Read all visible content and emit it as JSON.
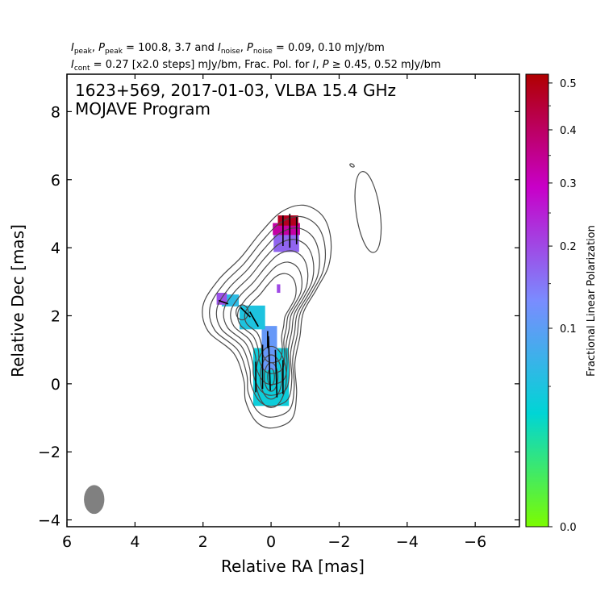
{
  "header": {
    "line1": {
      "i_peak_sym": "I",
      "i_peak_sub": "peak",
      "p_peak_sym": "P",
      "p_peak_sub": "peak",
      "peak_values": " = 100.8, 3.7 and ",
      "i_noise_sym": "I",
      "i_noise_sub": "noise",
      "p_noise_sym": "P",
      "p_noise_sub": "noise",
      "noise_values": " = 0.09, 0.10 mJy/bm"
    },
    "line2": {
      "i_cont_sym": "I",
      "i_cont_sub": "cont",
      "cont_text": " = 0.27 [x2.0 steps] mJy/bm, Frac. Pol. for ",
      "i_sym": "I",
      "p_sym": "P",
      "geq_text": " ≥ 0.45, 0.52 mJy/bm"
    }
  },
  "chart_data": {
    "type": "heatmap",
    "title_line1": "1623+569, 2017-01-03, VLBA 15.4 GHz",
    "title_line2": "MOJAVE Program",
    "xlabel": "Relative RA [mas]",
    "ylabel": "Relative Dec [mas]",
    "xlim": [
      6.0,
      -7.3
    ],
    "ylim": [
      -4.2,
      9.1
    ],
    "x_inverted": true,
    "xticks": [
      6,
      4,
      2,
      0,
      -2,
      -4,
      -6
    ],
    "xtick_labels": [
      "6",
      "4",
      "2",
      "0",
      "−2",
      "−4",
      "−6"
    ],
    "yticks": [
      -4,
      -2,
      0,
      2,
      4,
      6,
      8
    ],
    "ytick_labels": [
      "−4",
      "−2",
      "0",
      "2",
      "4",
      "6",
      "8"
    ],
    "colorbar": {
      "label": "Fractional Linear Polarization",
      "range": [
        0.0,
        0.52
      ],
      "scale": "sqrt",
      "ticks": [
        0.0,
        0.1,
        0.2,
        0.3,
        0.4,
        0.5
      ],
      "tick_labels": [
        "0.0",
        "0.1",
        "0.2",
        "0.3",
        "0.4",
        "0.5"
      ],
      "minor_ticks": [
        0.05,
        0.15,
        0.25,
        0.35,
        0.45
      ],
      "colors": [
        "#7cfc00",
        "#00d5d5",
        "#7a8cff",
        "#c800c8",
        "#b00000"
      ]
    },
    "beam": {
      "ra": 5.2,
      "dec": -3.4,
      "major_mas": 0.85,
      "minor_mas": 0.6,
      "pa_deg": 0,
      "color": "#808080"
    },
    "polarization_regions": [
      {
        "ra": 0.0,
        "dec": 0.2,
        "width": 1.05,
        "height": 1.7,
        "frac_pol": 0.04
      },
      {
        "ra": 0.05,
        "dec": 1.05,
        "width": 0.45,
        "height": 1.3,
        "frac_pol": 0.11
      },
      {
        "ra": 0.55,
        "dec": 1.95,
        "width": 0.75,
        "height": 0.7,
        "frac_pol": 0.05
      },
      {
        "ra": 1.2,
        "dec": 2.45,
        "width": 0.5,
        "height": 0.35,
        "frac_pol": 0.06
      },
      {
        "ra": 1.45,
        "dec": 2.5,
        "width": 0.3,
        "height": 0.35,
        "frac_pol": 0.19
      },
      {
        "ra": -0.45,
        "dec": 4.15,
        "width": 0.75,
        "height": 0.55,
        "frac_pol": 0.17
      },
      {
        "ra": -0.45,
        "dec": 4.55,
        "width": 0.8,
        "height": 0.35,
        "frac_pol": 0.33
      },
      {
        "ra": -0.5,
        "dec": 4.8,
        "width": 0.6,
        "height": 0.3,
        "frac_pol": 0.48
      },
      {
        "ra": -0.22,
        "dec": 2.8,
        "width": 0.1,
        "height": 0.25,
        "frac_pol": 0.2
      }
    ],
    "evpa_vectors": [
      {
        "ra": 0.45,
        "dec": 0.2,
        "angle_deg": 90,
        "length": 0.9
      },
      {
        "ra": 0.25,
        "dec": 0.5,
        "angle_deg": 90,
        "length": 1.3
      },
      {
        "ra": 0.05,
        "dec": 0.6,
        "angle_deg": 88,
        "length": 1.6
      },
      {
        "ra": -0.15,
        "dec": 0.3,
        "angle_deg": 88,
        "length": 1.4
      },
      {
        "ra": -0.35,
        "dec": 0.2,
        "angle_deg": 90,
        "length": 1.0
      },
      {
        "ra": 0.1,
        "dec": 1.3,
        "angle_deg": 90,
        "length": 0.5
      },
      {
        "ra": 0.5,
        "dec": 1.9,
        "angle_deg": 60,
        "length": 0.5
      },
      {
        "ra": 0.75,
        "dec": 2.1,
        "angle_deg": 45,
        "length": 0.4
      },
      {
        "ra": 1.4,
        "dec": 2.4,
        "angle_deg": 20,
        "length": 0.3
      },
      {
        "ra": -0.35,
        "dec": 4.5,
        "angle_deg": 90,
        "length": 0.9
      },
      {
        "ra": -0.55,
        "dec": 4.5,
        "angle_deg": 90,
        "length": 1.0
      },
      {
        "ra": -0.75,
        "dec": 4.5,
        "angle_deg": 90,
        "length": 0.8
      }
    ],
    "contours": {
      "base_mJy_per_beam": 0.27,
      "step_factor": 2.0,
      "color": "#4a4a4a",
      "jet_levels": [
        {
          "scale": 1.0
        },
        {
          "scale": 0.9
        },
        {
          "scale": 0.8
        },
        {
          "scale": 0.7
        },
        {
          "scale": 0.6
        },
        {
          "scale": 0.5
        },
        {
          "scale": 0.4
        }
      ],
      "jet_outline": [
        [
          0.0,
          -1.3
        ],
        [
          -0.6,
          -1.05
        ],
        [
          -0.75,
          -0.3
        ],
        [
          -0.7,
          0.6
        ],
        [
          -0.85,
          1.4
        ],
        [
          -0.95,
          2.1
        ],
        [
          -1.35,
          2.8
        ],
        [
          -1.7,
          3.5
        ],
        [
          -1.75,
          4.3
        ],
        [
          -1.5,
          4.95
        ],
        [
          -0.95,
          5.25
        ],
        [
          -0.3,
          5.05
        ],
        [
          0.3,
          4.45
        ],
        [
          0.9,
          3.7
        ],
        [
          1.55,
          3.05
        ],
        [
          2.0,
          2.3
        ],
        [
          1.85,
          1.55
        ],
        [
          1.1,
          0.9
        ],
        [
          0.8,
          0.1
        ],
        [
          0.75,
          -0.5
        ],
        [
          0.45,
          -1.1
        ]
      ],
      "jet_center": [
        -0.05,
        1.9
      ],
      "inner_ellipses": [
        {
          "ra": 0.0,
          "dec": 0.2,
          "rx": 0.45,
          "ry": 0.9
        },
        {
          "ra": 0.0,
          "dec": 0.2,
          "rx": 0.32,
          "ry": 0.65
        },
        {
          "ra": 0.0,
          "dec": 0.2,
          "rx": 0.2,
          "ry": 0.42
        },
        {
          "ra": 0.0,
          "dec": 0.2,
          "rx": 0.1,
          "ry": 0.25
        },
        {
          "ra": 0.85,
          "dec": 2.1,
          "rx": 0.18,
          "ry": 0.22
        }
      ],
      "islands": [
        {
          "ra": -2.85,
          "dec": 5.05,
          "rx": 0.35,
          "ry": 1.2,
          "angle_deg": -8
        },
        {
          "ra": -2.38,
          "dec": 6.42,
          "rx": 0.07,
          "ry": 0.04,
          "angle_deg": 30
        }
      ]
    }
  }
}
